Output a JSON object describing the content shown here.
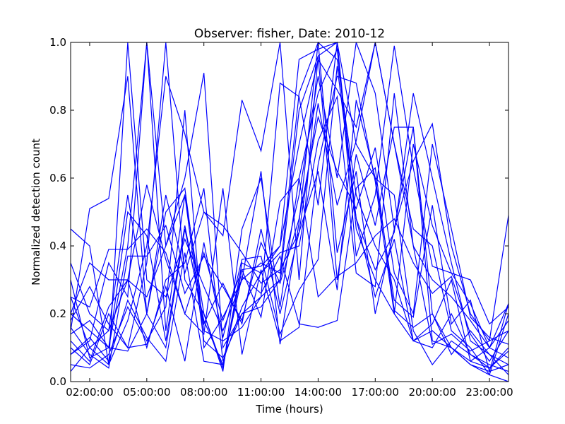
{
  "chart_data": {
    "type": "line",
    "title": "Observer: fisher, Date: 2010-12",
    "xlabel": "Time (hours)",
    "ylabel": "Normalized detection count",
    "xlim": [
      1,
      24
    ],
    "ylim": [
      0,
      1
    ],
    "x_ticks": [
      {
        "value": 2,
        "label": "02:00:00"
      },
      {
        "value": 5,
        "label": "05:00:00"
      },
      {
        "value": 8,
        "label": "08:00:00"
      },
      {
        "value": 11,
        "label": "11:00:00"
      },
      {
        "value": 14,
        "label": "14:00:00"
      },
      {
        "value": 17,
        "label": "17:00:00"
      },
      {
        "value": 20,
        "label": "20:00:00"
      },
      {
        "value": 23,
        "label": "23:00:00"
      }
    ],
    "y_ticks": [
      {
        "value": 0.0,
        "label": "0.0"
      },
      {
        "value": 0.2,
        "label": "0.2"
      },
      {
        "value": 0.4,
        "label": "0.4"
      },
      {
        "value": 0.6,
        "label": "0.6"
      },
      {
        "value": 0.8,
        "label": "0.8"
      },
      {
        "value": 1.0,
        "label": "1.0"
      }
    ],
    "grid": false,
    "line_color": "#0000ff",
    "x": [
      1,
      2,
      3,
      4,
      5,
      6,
      7,
      8,
      9,
      10,
      11,
      12,
      13,
      14,
      15,
      16,
      17,
      18,
      19,
      20,
      21,
      22,
      23,
      24
    ],
    "series": [
      {
        "values": [
          0.45,
          0.4,
          0.05,
          1.0,
          0.3,
          0.25,
          0.42,
          0.28,
          0.15,
          0.3,
          0.35,
          0.32,
          0.85,
          1.0,
          0.95,
          0.55,
          0.4,
          0.3,
          0.12,
          0.1,
          0.2,
          0.08,
          0.05,
          0.03
        ]
      },
      {
        "values": [
          0.15,
          0.51,
          0.54,
          0.9,
          0.2,
          0.1,
          0.45,
          0.18,
          0.05,
          0.33,
          0.34,
          0.4,
          0.95,
          0.98,
          1.0,
          0.45,
          0.3,
          0.2,
          0.12,
          0.15,
          0.1,
          0.05,
          0.02,
          0.0
        ]
      },
      {
        "values": [
          0.08,
          0.12,
          0.35,
          0.25,
          1.0,
          0.15,
          0.55,
          0.12,
          0.07,
          0.2,
          0.25,
          0.3,
          0.8,
          0.96,
          1.0,
          0.7,
          0.6,
          0.55,
          0.15,
          0.05,
          0.12,
          0.08,
          0.04,
          0.1
        ]
      },
      {
        "values": [
          0.1,
          0.05,
          0.2,
          0.1,
          0.35,
          1.0,
          0.3,
          0.2,
          0.04,
          0.35,
          0.32,
          0.4,
          0.7,
          0.95,
          0.86,
          0.75,
          1.0,
          0.7,
          0.45,
          0.4,
          0.15,
          0.1,
          0.02,
          0.2
        ]
      },
      {
        "values": [
          0.35,
          0.2,
          0.15,
          0.3,
          0.25,
          0.4,
          0.6,
          0.91,
          0.1,
          0.2,
          0.22,
          0.3,
          0.55,
          0.9,
          0.6,
          1.0,
          0.85,
          0.45,
          0.75,
          0.2,
          0.1,
          0.05,
          0.03,
          0.05
        ]
      },
      {
        "values": [
          0.25,
          0.1,
          0.05,
          0.18,
          0.4,
          0.9,
          0.73,
          0.5,
          0.46,
          0.38,
          0.29,
          0.33,
          0.44,
          0.82,
          0.52,
          0.71,
          1.0,
          0.7,
          0.4,
          0.3,
          0.25,
          0.18,
          0.1,
          0.23
        ]
      },
      {
        "values": [
          0.2,
          0.15,
          0.1,
          0.4,
          1.0,
          0.4,
          0.55,
          0.2,
          0.03,
          0.45,
          0.6,
          0.22,
          0.6,
          0.85,
          0.98,
          0.48,
          0.33,
          0.44,
          0.85,
          0.6,
          0.35,
          0.12,
          0.08,
          0.05
        ]
      },
      {
        "values": [
          0.05,
          0.04,
          0.08,
          0.22,
          0.12,
          0.22,
          0.8,
          0.1,
          0.19,
          0.3,
          0.62,
          0.11,
          0.47,
          1.0,
          0.38,
          0.62,
          0.2,
          0.45,
          0.65,
          0.76,
          0.4,
          0.2,
          0.12,
          0.15
        ]
      },
      {
        "values": [
          0.03,
          0.1,
          0.15,
          0.55,
          0.2,
          0.5,
          0.57,
          0.15,
          0.12,
          0.16,
          0.25,
          0.88,
          0.84,
          0.52,
          1.0,
          0.37,
          0.55,
          0.99,
          0.63,
          0.34,
          0.32,
          0.3,
          0.17,
          0.22
        ]
      },
      {
        "values": [
          0.12,
          0.06,
          0.22,
          0.3,
          0.1,
          0.3,
          0.35,
          0.57,
          0.06,
          0.22,
          0.32,
          0.38,
          0.4,
          0.71,
          0.84,
          0.32,
          0.28,
          0.85,
          0.4,
          0.11,
          0.14,
          0.09,
          0.12,
          0.49
        ]
      },
      {
        "values": [
          0.3,
          0.07,
          0.1,
          0.09,
          0.2,
          0.55,
          0.32,
          0.5,
          0.43,
          0.83,
          0.68,
          1.0,
          0.3,
          0.96,
          0.3,
          0.67,
          0.46,
          0.75,
          0.75,
          0.12,
          0.1,
          0.06,
          0.1,
          0.18
        ]
      },
      {
        "values": [
          0.2,
          0.35,
          0.3,
          0.3,
          0.58,
          0.36,
          0.2,
          0.14,
          0.57,
          0.08,
          0.33,
          0.12,
          0.16,
          0.64,
          0.9,
          0.88,
          0.59,
          0.2,
          0.7,
          0.46,
          0.32,
          0.23,
          0.1,
          0.07
        ]
      },
      {
        "values": [
          0.25,
          0.22,
          0.39,
          0.39,
          0.45,
          0.38,
          0.2,
          0.38,
          0.18,
          0.33,
          0.19,
          0.53,
          0.6,
          0.25,
          0.31,
          0.35,
          0.43,
          0.48,
          0.35,
          0.26,
          0.31,
          0.14,
          0.06,
          0.15
        ]
      },
      {
        "values": [
          0.14,
          0.18,
          0.1,
          0.5,
          0.43,
          0.12,
          0.46,
          0.17,
          0.29,
          0.17,
          0.45,
          0.2,
          0.44,
          0.62,
          0.27,
          0.83,
          0.6,
          0.24,
          0.19,
          0.52,
          0.17,
          0.24,
          0.03,
          0.23
        ]
      },
      {
        "values": [
          0.08,
          0.13,
          0.06,
          0.24,
          0.13,
          0.06,
          0.38,
          0.06,
          0.05,
          0.31,
          0.26,
          0.37,
          0.17,
          0.16,
          0.18,
          0.57,
          0.63,
          0.21,
          0.16,
          0.2,
          0.08,
          0.15,
          0.08,
          0.02
        ]
      },
      {
        "values": [
          0.18,
          0.28,
          0.17,
          0.1,
          0.11,
          0.28,
          0.06,
          0.41,
          0.13,
          0.36,
          0.37,
          0.14,
          0.27,
          0.36,
          0.93,
          0.48,
          0.25,
          0.42,
          0.12,
          0.17,
          0.3,
          0.06,
          0.04,
          0.09
        ]
      },
      {
        "values": [
          0.16,
          0.08,
          0.04,
          0.37,
          0.37,
          0.46,
          0.26,
          0.37,
          0.28,
          0.18,
          0.41,
          0.29,
          0.48,
          0.78,
          0.62,
          0.51,
          0.69,
          0.32,
          0.2,
          0.7,
          0.45,
          0.19,
          0.13,
          0.11
        ]
      }
    ]
  }
}
